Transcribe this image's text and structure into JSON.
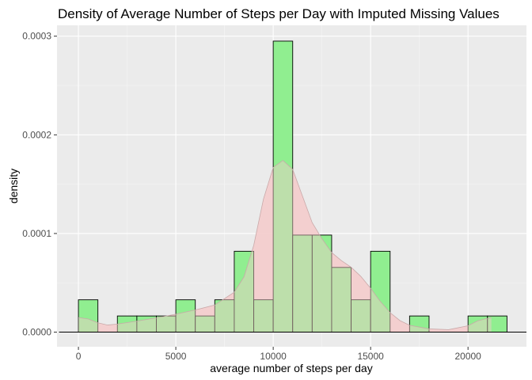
{
  "chart_data": {
    "type": "histogram-density",
    "title": "Density of Average Number of Steps per Day with Imputed Missing Values",
    "xlabel": "average number of steps per day",
    "ylabel": "density",
    "xlim": [
      -1100,
      23000
    ],
    "ylim": [
      -1.48e-05,
      0.000311
    ],
    "x_ticks": [
      0,
      5000,
      10000,
      15000,
      20000
    ],
    "x_tick_labels": [
      "0",
      "5000",
      "10000",
      "15000",
      "20000"
    ],
    "y_ticks": [
      0,
      0.0001,
      0.0002,
      0.0003
    ],
    "y_tick_labels": [
      "0.0000",
      "0.0001",
      "0.0002",
      "0.0003"
    ],
    "grid": true,
    "series": [
      {
        "type": "histogram",
        "bin_width": 1000,
        "bins": [
          {
            "x0": -1000,
            "x1": 0,
            "value": 0
          },
          {
            "x0": 0,
            "x1": 1000,
            "value": 3.28e-05
          },
          {
            "x0": 1000,
            "x1": 2000,
            "value": 0
          },
          {
            "x0": 2000,
            "x1": 3000,
            "value": 1.64e-05
          },
          {
            "x0": 3000,
            "x1": 4000,
            "value": 1.64e-05
          },
          {
            "x0": 4000,
            "x1": 5000,
            "value": 1.64e-05
          },
          {
            "x0": 5000,
            "x1": 6000,
            "value": 3.28e-05
          },
          {
            "x0": 6000,
            "x1": 7000,
            "value": 1.64e-05
          },
          {
            "x0": 7000,
            "x1": 8000,
            "value": 3.28e-05
          },
          {
            "x0": 8000,
            "x1": 9000,
            "value": 8.2e-05
          },
          {
            "x0": 9000,
            "x1": 10000,
            "value": 3.28e-05
          },
          {
            "x0": 10000,
            "x1": 11000,
            "value": 0.000295
          },
          {
            "x0": 11000,
            "x1": 12000,
            "value": 9.84e-05
          },
          {
            "x0": 12000,
            "x1": 13000,
            "value": 9.84e-05
          },
          {
            "x0": 13000,
            "x1": 14000,
            "value": 6.56e-05
          },
          {
            "x0": 14000,
            "x1": 15000,
            "value": 3.28e-05
          },
          {
            "x0": 15000,
            "x1": 16000,
            "value": 8.2e-05
          },
          {
            "x0": 16000,
            "x1": 17000,
            "value": 0
          },
          {
            "x0": 17000,
            "x1": 18000,
            "value": 1.64e-05
          },
          {
            "x0": 18000,
            "x1": 19000,
            "value": 0
          },
          {
            "x0": 19000,
            "x1": 20000,
            "value": 0
          },
          {
            "x0": 20000,
            "x1": 21000,
            "value": 1.64e-05
          },
          {
            "x0": 21000,
            "x1": 22000,
            "value": 1.64e-05
          },
          {
            "x0": 22000,
            "x1": 23000,
            "value": 0
          }
        ],
        "fill": "#90EE90",
        "stroke": "#000000"
      },
      {
        "type": "density",
        "x": [
          0,
          500,
          1000,
          1500,
          2000,
          3000,
          4000,
          5000,
          6000,
          7000,
          8000,
          8500,
          9000,
          9500,
          10000,
          10500,
          11000,
          11500,
          12000,
          12500,
          13000,
          13500,
          14000,
          14500,
          15000,
          15500,
          16000,
          16500,
          17000,
          18000,
          19000,
          20000,
          20500,
          21000,
          21200
        ],
        "y": [
          1.48e-05,
          1.34e-05,
          9.5e-06,
          7.2e-06,
          8.2e-06,
          1.12e-05,
          1.45e-05,
          1.82e-05,
          2.25e-05,
          2.75e-05,
          4.05e-05,
          5.6e-05,
          8.8e-05,
          0.000135,
          0.000167,
          0.000174,
          0.000165,
          0.000138,
          0.000111,
          9.47e-05,
          8.07e-05,
          7.25e-05,
          6.58e-05,
          5.65e-05,
          4.45e-05,
          3.1e-05,
          1.98e-05,
          1.18e-05,
          7e-06,
          3.3e-06,
          2.5e-06,
          6.5e-06,
          1.15e-05,
          1.4e-05,
          1.48e-05
        ],
        "fill": "#F4CCCC",
        "stroke": "#C9A9A9"
      }
    ]
  }
}
